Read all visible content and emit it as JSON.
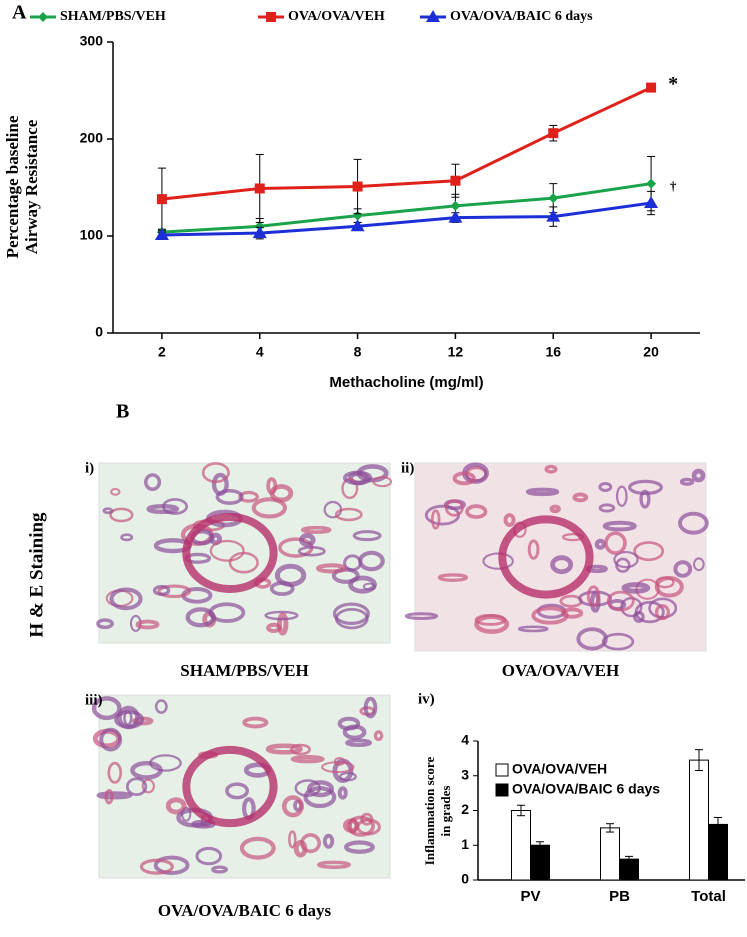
{
  "panel_labels": {
    "a": "A",
    "b": "B"
  },
  "side_label": "H & E Staining",
  "images": [
    {
      "label": "i)",
      "caption": "SHAM/PBS/VEH"
    },
    {
      "label": "ii)",
      "caption": "OVA/OVA/VEH"
    },
    {
      "label": "iii)",
      "caption": "OVA/OVA/BAIC 6 days"
    }
  ],
  "panel_iv_label": "iv)",
  "chart_data": [
    {
      "type": "line",
      "xlabel": "Methacholine (mg/ml)",
      "ylabel": [
        "Percentage baseline",
        "Airway Resistance"
      ],
      "categories": [
        "2",
        "4",
        "8",
        "12",
        "16",
        "20"
      ],
      "series": [
        {
          "name": "SHAM/PBS/VEH",
          "color": "#1aa34a",
          "marker": "diamond",
          "values": [
            104,
            110,
            121,
            131,
            139,
            154
          ],
          "errors": [
            3,
            8,
            7,
            12,
            15,
            28
          ]
        },
        {
          "name": "OVA/OVA/VEH",
          "color": "#e0201b",
          "marker": "square",
          "values": [
            138,
            149,
            151,
            157,
            206,
            253
          ],
          "errors": [
            32,
            35,
            28,
            17,
            8,
            4
          ]
        },
        {
          "name": "OVA/OVA/BAIC 6 days",
          "color": "#1c2fd6",
          "marker": "triangle",
          "values": [
            101,
            103,
            110,
            119,
            120,
            134
          ],
          "errors": [
            3,
            6,
            4,
            5,
            10,
            12
          ]
        }
      ],
      "ylim": [
        0,
        300
      ],
      "yticks": [
        0,
        100,
        200,
        300
      ],
      "annotations": [
        {
          "text": "*"
        },
        {
          "text": "†"
        }
      ],
      "legend": "top"
    },
    {
      "type": "bar",
      "ylabel": [
        "Inflammation score",
        "in grades"
      ],
      "categories": [
        "PV",
        "PB",
        "Total"
      ],
      "series": [
        {
          "name": "OVA/OVA/VEH",
          "color": "#ffffff",
          "values": [
            2.0,
            1.5,
            3.45
          ],
          "errors": [
            0.15,
            0.12,
            0.3
          ]
        },
        {
          "name": "OVA/OVA/BAIC 6 days",
          "color": "#000000",
          "values": [
            1.0,
            0.6,
            1.6
          ],
          "errors": [
            0.1,
            0.08,
            0.2
          ]
        }
      ],
      "ylim": [
        0,
        4
      ],
      "yticks": [
        0,
        1,
        2,
        3,
        4
      ],
      "legend": "top"
    }
  ]
}
